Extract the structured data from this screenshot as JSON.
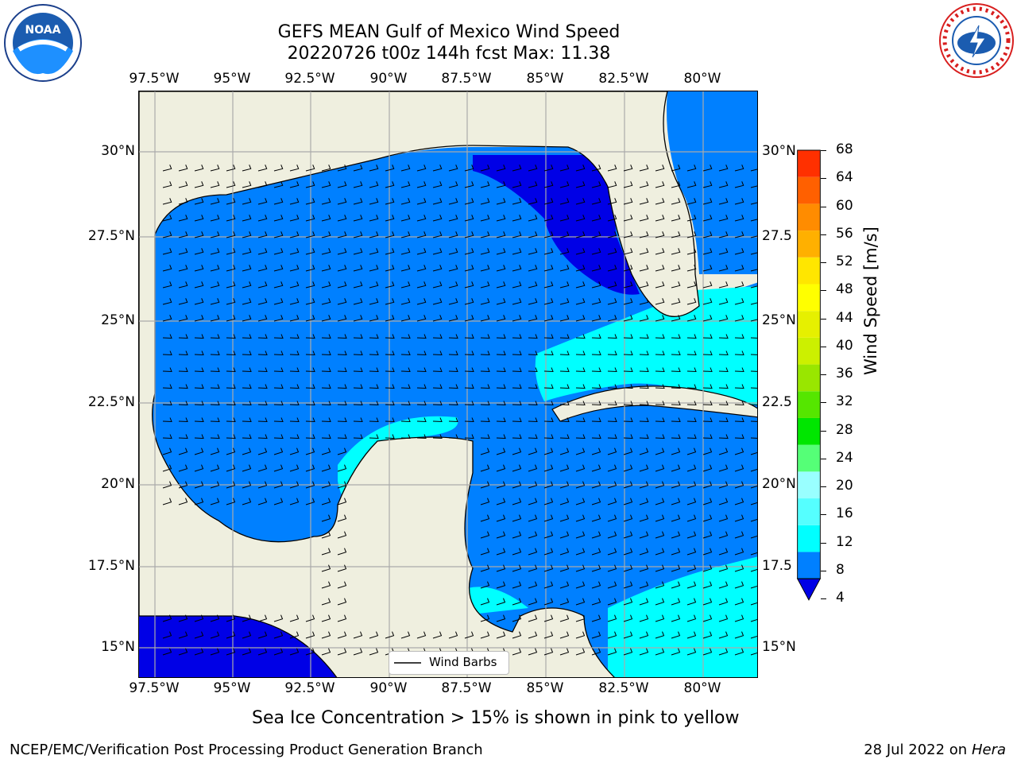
{
  "title_line1": "GEFS MEAN Gulf of Mexico Wind Speed",
  "title_line2": "20220726 t00z 144h fcst   Max: 11.38",
  "logos": {
    "left": "noara-logo",
    "left_text": "NOAA",
    "right": "nws-logo",
    "right_text": "NATIONAL WEATHER SERVICE"
  },
  "lon_ticks_top": [
    "97.5°W",
    "95°W",
    "92.5°W",
    "90°W",
    "87.5°W",
    "85°W",
    "82.5°W",
    "80°W"
  ],
  "lon_ticks_bottom": [
    "97.5°W",
    "95°W",
    "92.5°W",
    "90°W",
    "87.5°W",
    "85°W",
    "82.5°W",
    "80°W"
  ],
  "lat_ticks_left": [
    "30°N",
    "27.5°N",
    "25°N",
    "22.5°N",
    "20°N",
    "17.5°N",
    "15°N"
  ],
  "lat_ticks_right": [
    "30°N",
    "27.5",
    "25°N",
    "22.5",
    "20°N",
    "17.5",
    "15°N"
  ],
  "colorbar": {
    "label": "Wind Speed [m/s]",
    "ticks": [
      "68",
      "64",
      "60",
      "56",
      "52",
      "48",
      "44",
      "40",
      "36",
      "32",
      "28",
      "24",
      "20",
      "16",
      "12",
      "8",
      "4"
    ],
    "colors": [
      "#0000e6",
      "#0080ff",
      "#00ffff",
      "#55ffff",
      "#99ffff",
      "#55ff77",
      "#00e600",
      "#55e600",
      "#99e600",
      "#ccf000",
      "#e6f000",
      "#ffff00",
      "#ffe600",
      "#ffb000",
      "#ff8c00",
      "#ff6000",
      "#ff3000",
      "#ff0000"
    ]
  },
  "legend_label": "Wind Barbs",
  "caption": "Sea Ice Concentration > 15% is shown in pink to yellow",
  "footer_left": "NCEP/EMC/Verification Post Processing Product Generation Branch",
  "footer_right_prefix": "28 Jul 2022 on ",
  "footer_right_host": "Hera"
}
